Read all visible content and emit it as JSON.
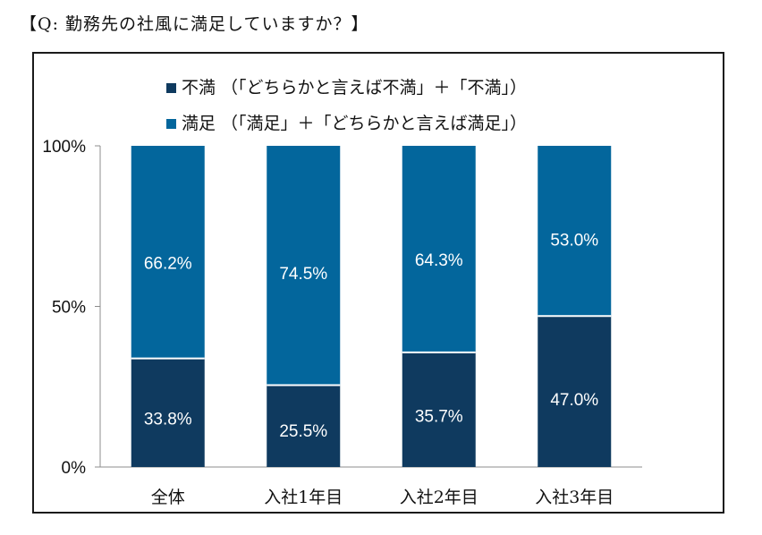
{
  "page": {
    "title": "【Q: 勤務先の社風に満足していますか？】"
  },
  "colors": {
    "dissatisfied": "#0f3a5f",
    "satisfied": "#03669c",
    "axis": "#8c8c8c"
  },
  "legend": {
    "items": [
      {
        "label": "不満 （「どちらかと言えば不満」＋「不満」）",
        "color": "#0f3a5f"
      },
      {
        "label": "満足 （「満足」＋「どちらかと言えば満足」）",
        "color": "#03669c"
      }
    ]
  },
  "chart_data": {
    "type": "bar",
    "stacked": true,
    "categories": [
      "全体",
      "入社1年目",
      "入社2年目",
      "入社3年目"
    ],
    "series": [
      {
        "name": "不満",
        "values": [
          33.8,
          25.5,
          35.7,
          47.0
        ],
        "labels": [
          "33.8%",
          "25.5%",
          "35.7%",
          "47.0%"
        ]
      },
      {
        "name": "満足",
        "values": [
          66.2,
          74.5,
          64.3,
          53.0
        ],
        "labels": [
          "66.2%",
          "74.5%",
          "64.3%",
          "53.0%"
        ]
      }
    ],
    "ylim": [
      0,
      100
    ],
    "yticks": [
      0,
      50,
      100
    ],
    "ytick_labels": [
      "0%",
      "50%",
      "100%"
    ],
    "legend_position": "top",
    "grid": false
  }
}
